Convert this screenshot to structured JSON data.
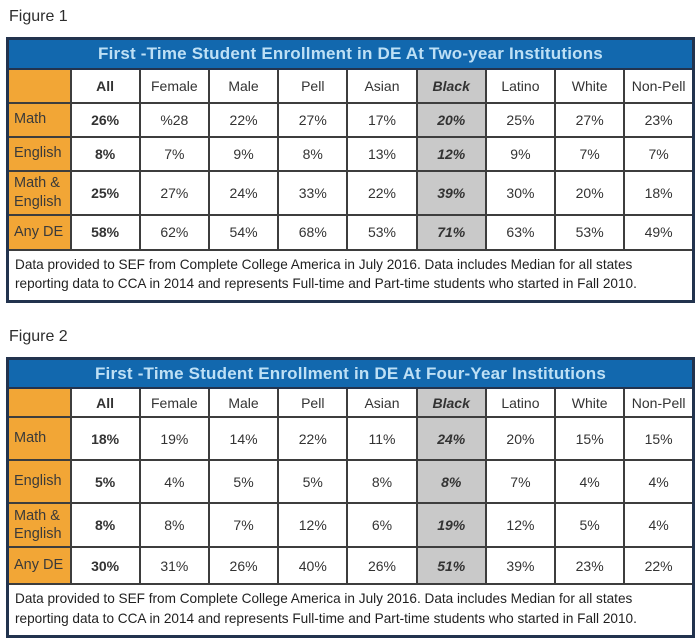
{
  "colors": {
    "title_bar_blue": "#1268ae",
    "title_text_light_blue": "#bee0f5",
    "row_label_orange": "#f2a636",
    "highlight_gray": "#c9c9c9",
    "outer_border_navy": "#22334e",
    "grid_line_dark": "#3d3d3d"
  },
  "chart_data": [
    {
      "type": "table",
      "figure_label": "Figure 1",
      "title": "First -Time Student Enrollment in DE At Two-year Institutions",
      "columns": [
        "All",
        "Female",
        "Male",
        "Pell",
        "Asian",
        "Black",
        "Latino",
        "White",
        "Non-Pell"
      ],
      "row_labels": [
        "Math",
        "English",
        "Math & English",
        "Any DE"
      ],
      "rows": [
        [
          "26%",
          "%28",
          "22%",
          "27%",
          "17%",
          "20%",
          "25%",
          "27%",
          "23%"
        ],
        [
          "8%",
          "7%",
          "9%",
          "8%",
          "13%",
          "12%",
          "9%",
          "7%",
          "7%"
        ],
        [
          "25%",
          "27%",
          "24%",
          "33%",
          "22%",
          "39%",
          "30%",
          "20%",
          "18%"
        ],
        [
          "58%",
          "62%",
          "54%",
          "68%",
          "53%",
          "71%",
          "63%",
          "53%",
          "49%"
        ]
      ],
      "bold_column": "All",
      "highlight_column": "Black",
      "footnote": "Data provided to SEF from Complete College America in July 2016. Data includes Median for all states reporting data to CCA in 2014 and represents Full-time and Part-time students who started in Fall 2010."
    },
    {
      "type": "table",
      "figure_label": "Figure 2",
      "title": "First -Time Student Enrollment in DE At Four-Year Institutions",
      "columns": [
        "All",
        "Female",
        "Male",
        "Pell",
        "Asian",
        "Black",
        "Latino",
        "White",
        "Non-Pell"
      ],
      "row_labels": [
        "Math",
        "English",
        "Math & English",
        "Any DE"
      ],
      "rows": [
        [
          "18%",
          "19%",
          "14%",
          "22%",
          "11%",
          "24%",
          "20%",
          "15%",
          "15%"
        ],
        [
          "5%",
          "4%",
          "5%",
          "5%",
          "8%",
          "8%",
          "7%",
          "4%",
          "4%"
        ],
        [
          "8%",
          "8%",
          "7%",
          "12%",
          "6%",
          "19%",
          "12%",
          "5%",
          "4%"
        ],
        [
          "30%",
          "31%",
          "26%",
          "40%",
          "26%",
          "51%",
          "39%",
          "23%",
          "22%"
        ]
      ],
      "bold_column": "All",
      "highlight_column": "Black",
      "footnote": "Data provided to SEF from Complete College America in July 2016. Data includes Median for all states reporting data to CCA in 2014 and represents Full-time and Part-time students who started in Fall 2010."
    }
  ]
}
